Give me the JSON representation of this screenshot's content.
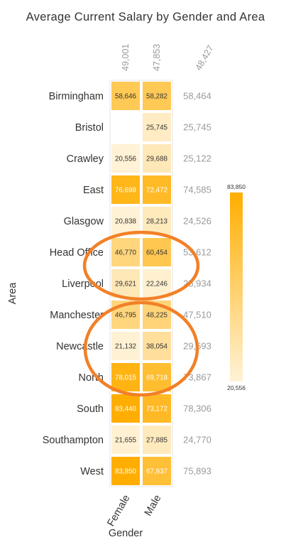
{
  "chart_data": {
    "type": "heatmap",
    "title": "Average Current Salary by Gender and Area",
    "xlabel": "Gender",
    "ylabel": "Area",
    "columns": [
      "Female",
      "Male"
    ],
    "column_totals": [
      "49,001",
      "47,853",
      "48,427"
    ],
    "rows": [
      "Birmingham",
      "Bristol",
      "Crawley",
      "East",
      "Glasgow",
      "Head Office",
      "Liverpool",
      "Manchester",
      "Newcastle",
      "North",
      "South",
      "Southampton",
      "West"
    ],
    "values": [
      [
        58646,
        58282
      ],
      [
        null,
        25745
      ],
      [
        20556,
        29688
      ],
      [
        76698,
        72472
      ],
      [
        20838,
        28213
      ],
      [
        46770,
        60454
      ],
      [
        29621,
        22246
      ],
      [
        46795,
        48225
      ],
      [
        21132,
        38054
      ],
      [
        78015,
        69718
      ],
      [
        83440,
        73172
      ],
      [
        21655,
        27885
      ],
      [
        83850,
        67937
      ]
    ],
    "row_totals": [
      "58,464",
      "25,745",
      "25,122",
      "74,585",
      "24,526",
      "53,612",
      "25,934",
      "47,510",
      "29,593",
      "73,867",
      "78,306",
      "24,770",
      "75,893"
    ],
    "color_scale": {
      "min": 20556,
      "max": 83850,
      "min_label": "20,556",
      "max_label": "83,850",
      "low_color": "#fff2d6",
      "high_color": "#ffae00"
    },
    "annotations": [
      {
        "shape": "ellipse",
        "color": "#f28027",
        "around_rows": [
          "Head Office",
          "Liverpool"
        ]
      },
      {
        "shape": "ellipse",
        "color": "#f28027",
        "around_rows": [
          "Manchester",
          "Newcastle",
          "North"
        ]
      }
    ]
  }
}
